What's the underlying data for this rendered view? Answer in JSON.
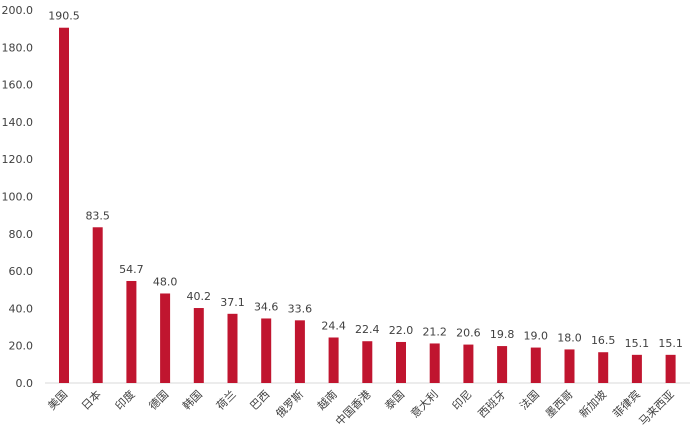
{
  "chart_data": {
    "type": "bar",
    "title": "",
    "xlabel": "",
    "ylabel": "",
    "ylim": [
      0,
      200
    ],
    "yticks": [
      "0.0",
      "20.0",
      "40.0",
      "60.0",
      "80.0",
      "100.0",
      "120.0",
      "140.0",
      "160.0",
      "180.0",
      "200.0"
    ],
    "grid": false,
    "legend": "none",
    "bar_color": "#C0152F",
    "categories": [
      "美国",
      "日本",
      "印度",
      "德国",
      "韩国",
      "荷兰",
      "巴西",
      "俄罗斯",
      "越南",
      "中国香港",
      "泰国",
      "意大利",
      "印尼",
      "西班牙",
      "法国",
      "墨西哥",
      "新加坡",
      "菲律宾",
      "马来西亚"
    ],
    "values": [
      190.5,
      83.5,
      54.7,
      48.0,
      40.2,
      37.1,
      34.6,
      33.6,
      24.4,
      22.4,
      22.0,
      21.2,
      20.6,
      19.8,
      19.0,
      18.0,
      16.5,
      15.1,
      15.1
    ],
    "data_labels": [
      "190.5",
      "83.5",
      "54.7",
      "48.0",
      "40.2",
      "37.1",
      "34.6",
      "33.6",
      "24.4",
      "22.4",
      "22.0",
      "21.2",
      "20.6",
      "19.8",
      "19.0",
      "18.0",
      "16.5",
      "15.1",
      "15.1"
    ]
  }
}
